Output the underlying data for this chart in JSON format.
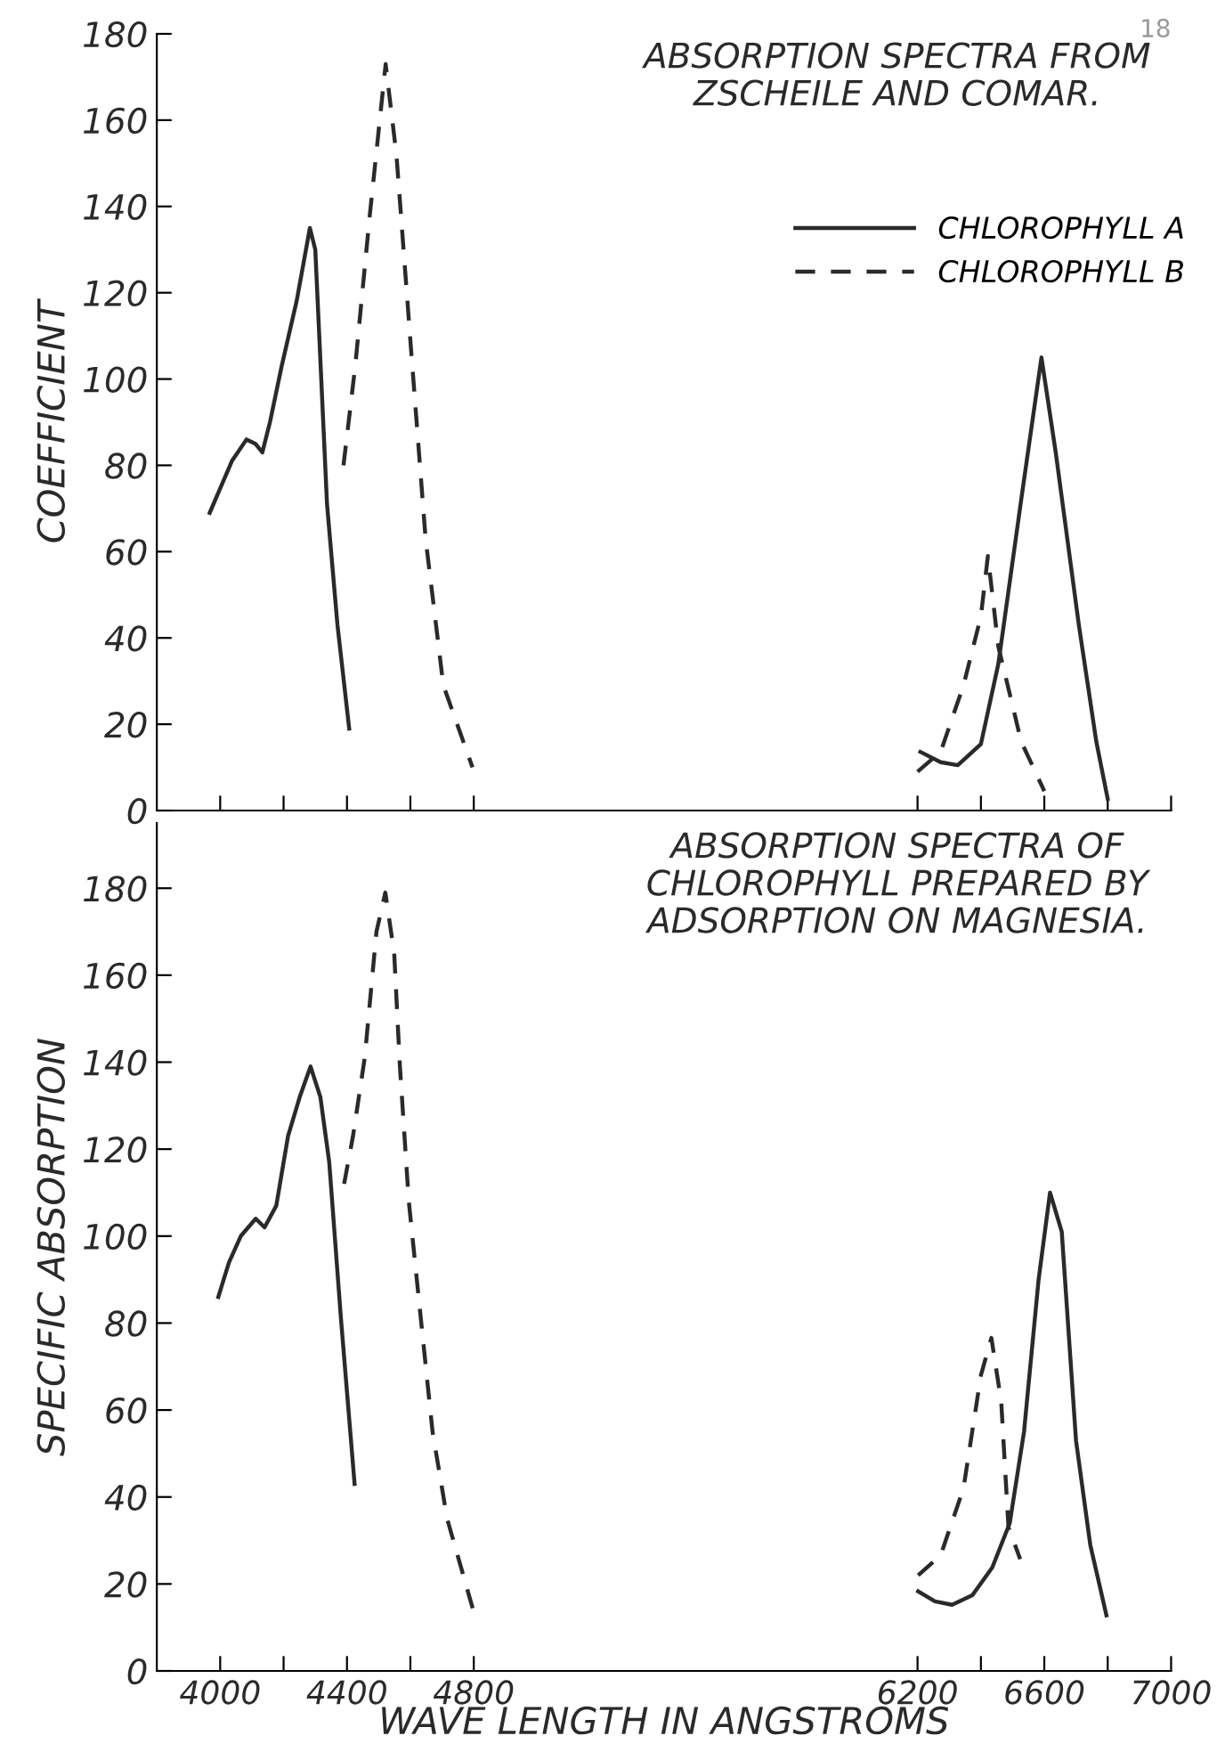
{
  "chart_data": [
    {
      "type": "line",
      "title": "ABSORPTION SPECTRA FROM ZSCHEILE AND COMAR.",
      "ylabel": "COEFFICIENT",
      "annotations": [
        "18"
      ],
      "xlim": [
        3800,
        7000
      ],
      "xticks": [
        {
          "value": 4000,
          "label": null
        },
        {
          "value": 4200,
          "label": null
        },
        {
          "value": 4400,
          "label": null
        },
        {
          "value": 4600,
          "label": null
        },
        {
          "value": 4800,
          "label": null
        },
        {
          "value": 6200,
          "label": null
        },
        {
          "value": 6400,
          "label": null
        },
        {
          "value": 6600,
          "label": null
        },
        {
          "value": 6800,
          "label": null
        },
        {
          "value": 7000,
          "label": null
        }
      ],
      "ylim": [
        0,
        180
      ],
      "yticks": [
        0,
        20,
        40,
        60,
        80,
        100,
        120,
        140,
        160,
        180
      ],
      "tick_labels": "y",
      "grid": false,
      "legend": "top right",
      "series": [
        {
          "name": "CHLOROPHYLL A",
          "color": "#2a2a2a",
          "line_style": "solid",
          "x": [
            3967,
            4037,
            4083,
            4111,
            4133,
            4157,
            4194,
            4241,
            4283,
            4300,
            4337,
            4370,
            4407,
            5500,
            6209,
            6273,
            6327,
            6400,
            6455,
            6527,
            6591,
            6636,
            6709,
            6764,
            6800
          ],
          "values": [
            69,
            81,
            86,
            85,
            83,
            90,
            103,
            118,
            135,
            130,
            71,
            43,
            19,
            null,
            13.6,
            11.2,
            10.5,
            15.4,
            34,
            72,
            105,
            83,
            43,
            16,
            2.7
          ]
        },
        {
          "name": "CHLOROPHYLL B",
          "color": "#2a2a2a",
          "line_style": "dashed",
          "x": [
            4389,
            4426,
            4472,
            4522,
            4556,
            4602,
            4648,
            4704,
            4796,
            5500,
            6200,
            6273,
            6345,
            6400,
            6422,
            6455,
            6527,
            6600
          ],
          "values": [
            80,
            103,
            138,
            173,
            152,
            107,
            63,
            29,
            10,
            null,
            9,
            13.6,
            29,
            45,
            59,
            38,
            16,
            4.5
          ]
        }
      ]
    },
    {
      "type": "line",
      "title": "ABSORPTION SPECTRA OF CHLOROPHYLL PREPARED BY ADSORPTION ON MAGNESIA.",
      "ylabel": "SPECIFIC ABSORPTION",
      "xlabel": "WAVE LENGTH IN ANGSTROMS",
      "xlim": [
        3800,
        7000
      ],
      "xticks": [
        4000,
        {
          "value": 4200,
          "label": null
        },
        4400,
        {
          "value": 4600,
          "label": null
        },
        4800,
        6200,
        {
          "value": 6400,
          "label": null
        },
        6600,
        {
          "value": 6800,
          "label": null
        },
        7000
      ],
      "ylim": [
        0,
        195
      ],
      "yticks": [
        0,
        20,
        40,
        60,
        80,
        100,
        120,
        140,
        160,
        180
      ],
      "grid": false,
      "legend": false,
      "series": [
        {
          "color": "#2a2a2a",
          "line_style": "solid",
          "x": [
            3994,
            4028,
            4065,
            4112,
            4140,
            4177,
            4214,
            4251,
            4285,
            4316,
            4344,
            4381,
            4424,
            5500,
            6202,
            6255,
            6309,
            6373,
            6436,
            6491,
            6536,
            6582,
            6618,
            6655,
            6700,
            6745,
            6796
          ],
          "values": [
            86,
            94,
            100,
            104,
            102,
            107,
            123,
            132,
            139,
            132,
            117,
            81,
            43,
            null,
            18.3,
            16,
            15.2,
            17.4,
            23.8,
            34,
            55,
            90,
            110,
            101,
            53,
            29,
            12.8
          ]
        },
        {
          "color": "#2a2a2a",
          "line_style": "dashed",
          "x": [
            4391,
            4419,
            4456,
            4493,
            4521,
            4549,
            4567,
            4595,
            4633,
            4670,
            4716,
            4806,
            5500,
            6202,
            6273,
            6345,
            6400,
            6433,
            6464,
            6487,
            6524
          ],
          "values": [
            112,
            123,
            141,
            170,
            179,
            165,
            139,
            108,
            81,
            55,
            35,
            12,
            null,
            22,
            26.6,
            42,
            68,
            76.6,
            62,
            33,
            25.7
          ]
        }
      ]
    }
  ]
}
